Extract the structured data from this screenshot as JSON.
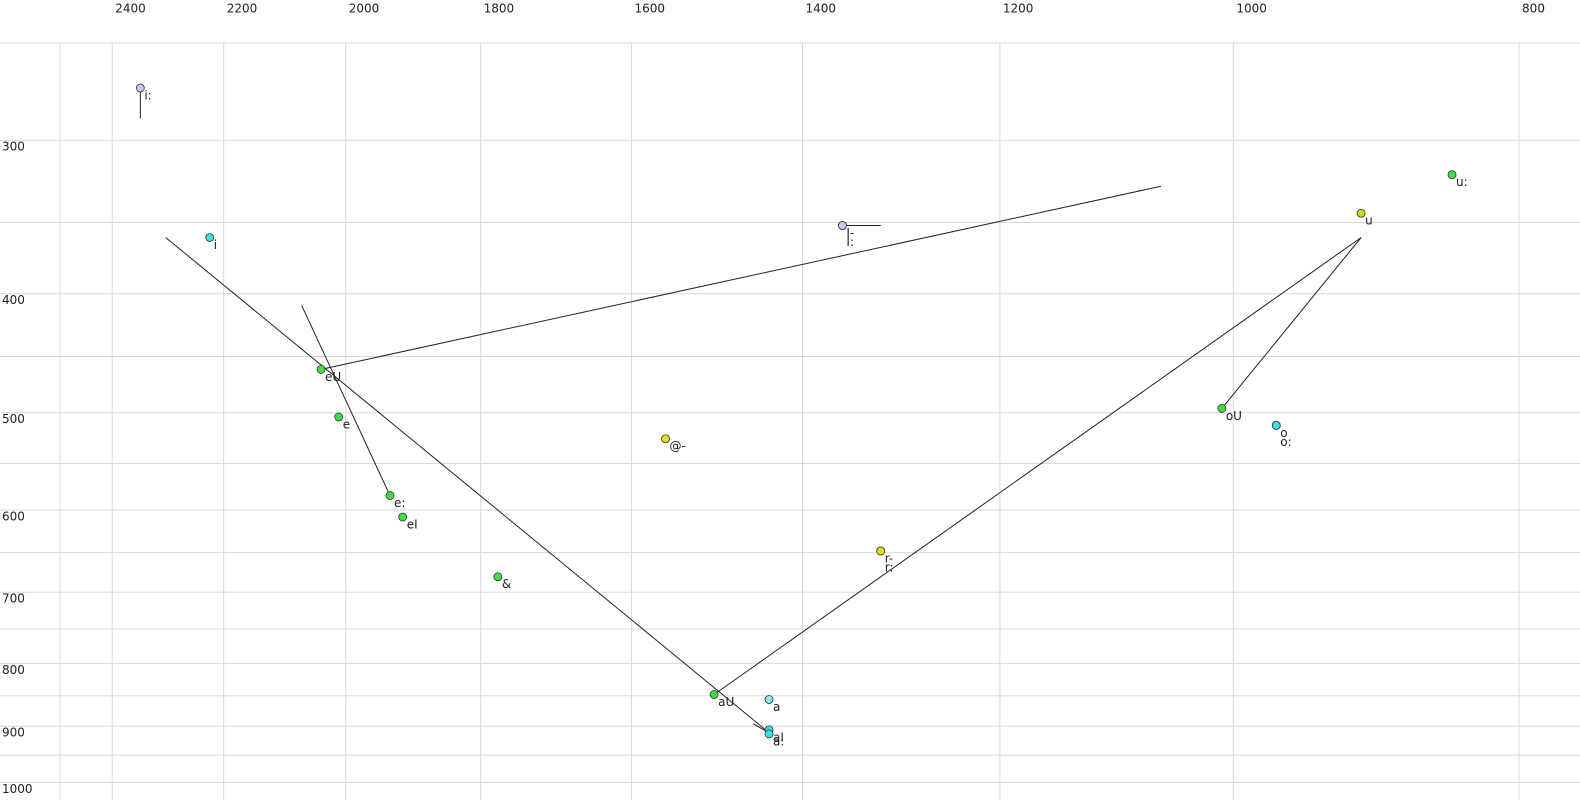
{
  "chart_data": {
    "type": "scatter",
    "xlog": true,
    "ylog": true,
    "grid": true,
    "xlim": [
      2500,
      770
    ],
    "ylim": [
      250,
      1020
    ],
    "xticks": [
      2400,
      2200,
      2000,
      1800,
      1600,
      1400,
      1200,
      1000,
      800
    ],
    "yticks": [
      300,
      400,
      500,
      600,
      700,
      800,
      900,
      1000
    ],
    "yminor": [
      250,
      350,
      450,
      550,
      650,
      750,
      850,
      950
    ],
    "points": [
      {
        "label": "i:",
        "x": 2348,
        "y": 272,
        "color": "#c8c8f0"
      },
      {
        "label": "i",
        "x": 2224,
        "y": 360,
        "color": "#40e0e0"
      },
      {
        "label": "eU",
        "x": 2039,
        "y": 461,
        "color": "#40e040"
      },
      {
        "label": "e",
        "x": 2011,
        "y": 504,
        "color": "#40e040"
      },
      {
        "label": "e:",
        "x": 1932,
        "y": 584,
        "color": "#40e040"
      },
      {
        "label": "eI",
        "x": 1913,
        "y": 608,
        "color": "#40e040"
      },
      {
        "label": "&",
        "x": 1776,
        "y": 680,
        "color": "#40e040"
      },
      {
        "label": "@-",
        "x": 1558,
        "y": 525,
        "color": "#e0e020"
      },
      {
        "label": "I-",
        "x": 1357,
        "y": 352,
        "color": "#c8c8f0"
      },
      {
        "label": "I:",
        "x": 1357,
        "y": 352,
        "color": "#c8c8f0"
      },
      {
        "label": "r-",
        "x": 1317,
        "y": 648,
        "color": "#e0e020"
      },
      {
        "label": "r:",
        "x": 1317,
        "y": 648,
        "color": "#e0e020"
      },
      {
        "label": "aU",
        "x": 1500,
        "y": 848,
        "color": "#40e040"
      },
      {
        "label": "a",
        "x": 1437,
        "y": 856,
        "color": "#80f0f0"
      },
      {
        "label": "aI",
        "x": 1437,
        "y": 906,
        "color": "#40e0e0"
      },
      {
        "label": "a:",
        "x": 1437,
        "y": 913,
        "color": "#40e0e0"
      },
      {
        "label": "oU",
        "x": 1009,
        "y": 496,
        "color": "#40e040"
      },
      {
        "label": "o",
        "x": 967,
        "y": 512,
        "color": "#40e0e0"
      },
      {
        "label": "o:",
        "x": 967,
        "y": 512,
        "color": "#40e0e0"
      },
      {
        "label": "u",
        "x": 905,
        "y": 344,
        "color": "#c8e020"
      },
      {
        "label": "u:",
        "x": 843,
        "y": 320,
        "color": "#40e040"
      }
    ],
    "segments": [
      {
        "x": [
          2302,
          1437
        ],
        "y": [
          360,
          911
        ]
      },
      {
        "x": [
          2070,
          1932
        ],
        "y": [
          409,
          584
        ]
      },
      {
        "x": [
          2039,
          1058
        ],
        "y": [
          461,
          327
        ]
      },
      {
        "x": [
          1500,
          905
        ],
        "y": [
          848,
          360
        ]
      },
      {
        "x": [
          1009,
          905
        ],
        "y": [
          496,
          360
        ]
      },
      {
        "x": [
          2348,
          2348
        ],
        "y": [
          272,
          288
        ]
      },
      {
        "x": [
          1357,
          1317
        ],
        "y": [
          352,
          352
        ]
      },
      {
        "x": [
          1455,
          1437
        ],
        "y": [
          896,
          911
        ]
      }
    ]
  }
}
